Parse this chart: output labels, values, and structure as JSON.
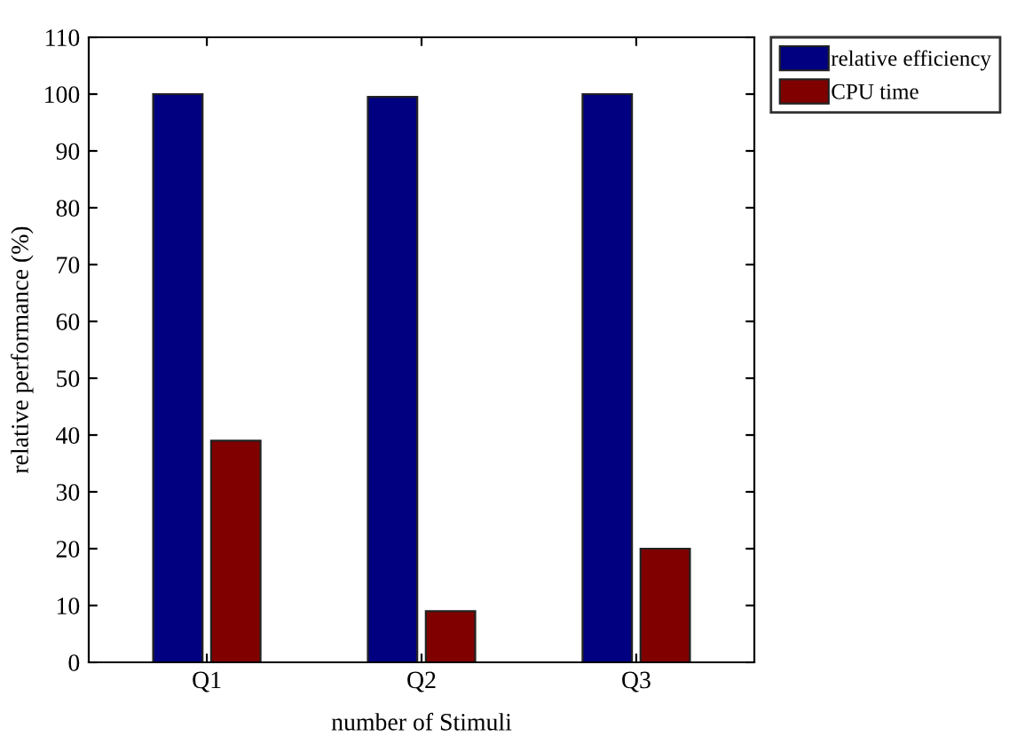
{
  "chart_data": {
    "type": "bar",
    "xlabel": "number of Stimuli",
    "ylabel": "relative performance (%)",
    "categories": [
      "Q1",
      "Q2",
      "Q3"
    ],
    "series": [
      {
        "name": "relative efficiency",
        "color": "#000080",
        "values": [
          100,
          99.5,
          100
        ]
      },
      {
        "name": "CPU time",
        "color": "#800000",
        "values": [
          39,
          9,
          20
        ]
      }
    ],
    "ylim": [
      0,
      110
    ],
    "yticks": [
      0,
      10,
      20,
      30,
      40,
      50,
      60,
      70,
      80,
      90,
      100,
      110
    ],
    "grid": false,
    "legend": "top right"
  }
}
